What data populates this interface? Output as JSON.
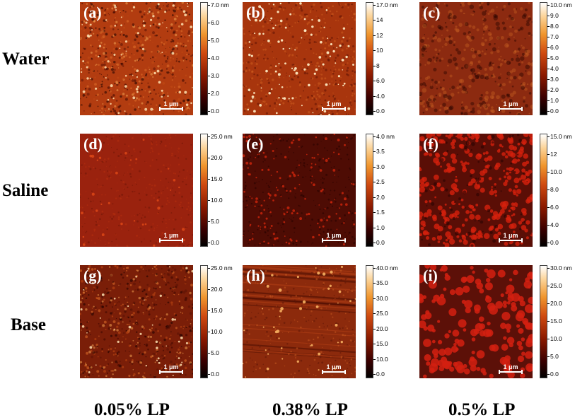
{
  "rows": [
    "Water",
    "Saline",
    "Base"
  ],
  "columns": [
    "0.05% LP",
    "0.38% LP",
    "0.5% LP"
  ],
  "scale_bar": "1 μm",
  "panels": [
    {
      "letter": "(a)",
      "ticks": [
        "7.0 nm",
        "6.0",
        "5.0",
        "4.0",
        "3.0",
        "2.0",
        "0.0"
      ],
      "style": "fine-bright",
      "base": "#b23c10"
    },
    {
      "letter": "(b)",
      "ticks": [
        "17.0 nm",
        "14",
        "12",
        "10",
        "8",
        "6.0",
        "4.0",
        "0.0"
      ],
      "style": "grains",
      "base": "#a8350d"
    },
    {
      "letter": "(c)",
      "ticks": [
        "10.0 nm",
        "9.0",
        "8.0",
        "7.0",
        "6.0",
        "5.0",
        "4.0",
        "3.0",
        "2.0",
        "1.0",
        "0.0"
      ],
      "style": "dark-patch",
      "base": "#8c2a10"
    },
    {
      "letter": "(d)",
      "ticks": [
        "25.0 nm",
        "20.0",
        "15.0",
        "10.0",
        "5.0",
        "0.0"
      ],
      "style": "smooth",
      "base": "#9a220e"
    },
    {
      "letter": "(e)",
      "ticks": [
        "4.0 nm",
        "3.5",
        "3.0",
        "2.5",
        "2.0",
        "1.5",
        "1.0",
        "0.0"
      ],
      "style": "dots-dark",
      "base": "#4e0c04"
    },
    {
      "letter": "(f)",
      "ticks": [
        "15.0 nm",
        "12",
        "10.0",
        "8.0",
        "6.0",
        "4.0",
        "0.0"
      ],
      "style": "blobs",
      "base": "#5a0e06"
    },
    {
      "letter": "(g)",
      "ticks": [
        "25.0 nm",
        "20.0",
        "15.0",
        "10.0",
        "5.0",
        "0.0"
      ],
      "style": "fine",
      "base": "#7a1e08"
    },
    {
      "letter": "(h)",
      "ticks": [
        "40.0 nm",
        "35.0",
        "30.0",
        "25.0",
        "20.0",
        "15.0",
        "10.0",
        "0.0"
      ],
      "style": "streaks",
      "base": "#8c2a0c"
    },
    {
      "letter": "(i)",
      "ticks": [
        "30.0 nm",
        "25.0",
        "20.0",
        "15.0",
        "10.0",
        "5.0",
        "0.0"
      ],
      "style": "big-blobs",
      "base": "#5c1008"
    }
  ]
}
